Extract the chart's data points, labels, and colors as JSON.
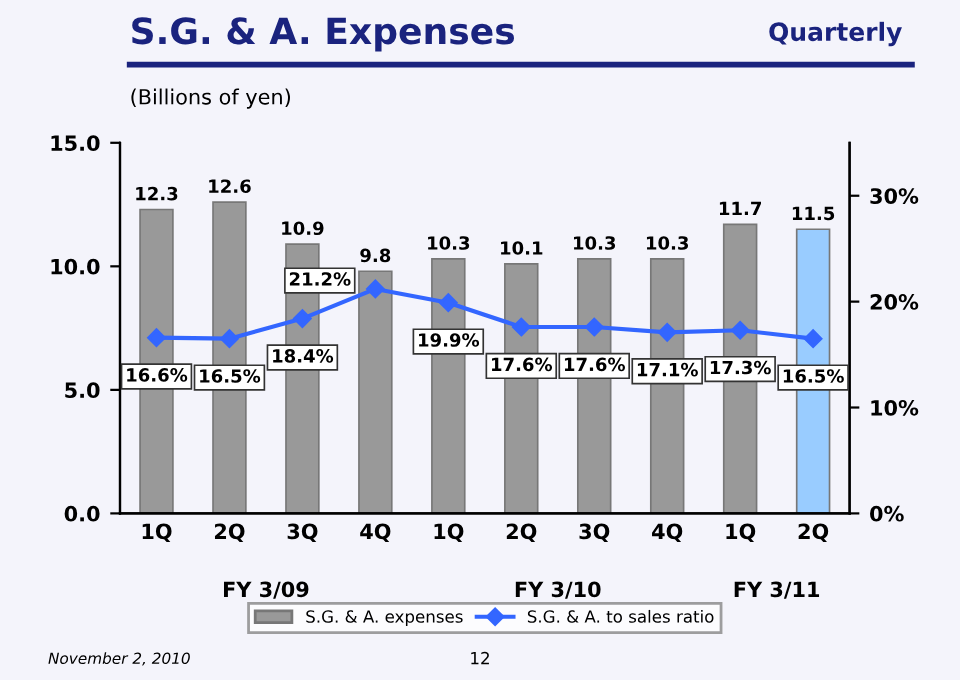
{
  "chart_data": {
    "type": "bar",
    "title": "S.G. & A. Expenses",
    "ylabel": "(Billions of yen)",
    "categories": [
      "1Q",
      "2Q",
      "3Q",
      "4Q",
      "1Q",
      "2Q",
      "3Q",
      "4Q",
      "1Q",
      "2Q"
    ],
    "series": [
      {
        "name": "S.G. & A. expenses",
        "color": "#999999",
        "colors": [
          "#999999",
          "#999999",
          "#999999",
          "#999999",
          "#999999",
          "#999999",
          "#999999",
          "#999999",
          "#999999",
          "#99ccff"
        ],
        "values": [
          12.3,
          12.6,
          10.9,
          9.8,
          10.3,
          10.1,
          10.3,
          10.3,
          11.7,
          11.5
        ],
        "value_labels": [
          "12.3",
          "12.6",
          "10.9",
          "9.8",
          "10.3",
          "10.1",
          "10.3",
          "10.3",
          "11.7",
          "11.5"
        ]
      },
      {
        "name": "S.G. & A. to sales ratio",
        "type": "line",
        "axis": "y2",
        "color": "#3366ff",
        "marker": "diamond",
        "values": [
          16.6,
          16.5,
          18.4,
          21.2,
          19.9,
          17.6,
          17.6,
          17.1,
          17.3,
          16.5
        ],
        "value_labels": [
          "16.6%",
          "16.5%",
          "18.4%",
          "21.2%",
          "19.9%",
          "17.6%",
          "17.6%",
          "17.1%",
          "17.3%",
          "16.5%"
        ]
      }
    ],
    "ylim": [
      0,
      15
    ],
    "yticks": [
      {
        "value": 0,
        "label": "0.0"
      },
      {
        "value": 5,
        "label": "5.0"
      },
      {
        "value": 10,
        "label": "10.0"
      },
      {
        "value": 15,
        "label": "15.0"
      }
    ],
    "y2lim": [
      0,
      35
    ],
    "y2ticks": [
      {
        "value": 0,
        "label": "0%"
      },
      {
        "value": 10,
        "label": "10%"
      },
      {
        "value": 20,
        "label": "20%"
      },
      {
        "value": 30,
        "label": "30%"
      }
    ],
    "legend": "bottom",
    "grid": false,
    "annotations": [
      "Quarterly",
      "FY 3/09",
      "FY 3/10",
      "FY 3/11",
      "November 2, 2010",
      "12"
    ]
  }
}
